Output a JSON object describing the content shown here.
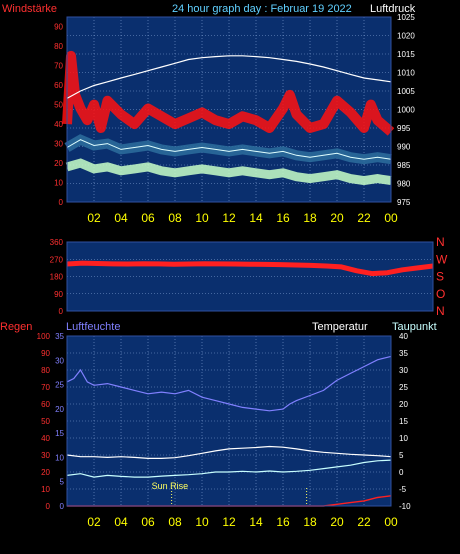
{
  "header": {
    "left_label": "Windstärke",
    "title": "24 hour graph day : Februar 19 2022",
    "right_label": "Luftdruck"
  },
  "colors": {
    "background": "#000000",
    "panel": "#0a2f6e",
    "grid": "#7f9fd2",
    "wind_gust": "#ff1010",
    "wind_dir": "#ff2020",
    "pressure": "#ffffff",
    "wind_speed": "#c8ffc8",
    "wind_avg_band": "#2a6a9a",
    "humidity": "#8080ff",
    "temperature": "#ffffff",
    "dewpoint": "#c8ffff",
    "rain": "#ff2020",
    "x_tick_label": "#ffff00",
    "left_axis_label": "#ff3030",
    "hum_axis_label": "#8080ff",
    "sunrise": "#ffff60"
  },
  "chart_data": [
    {
      "type": "line",
      "name": "wind-pressure",
      "x_ticks": [
        "02",
        "04",
        "06",
        "08",
        "10",
        "12",
        "14",
        "16",
        "18",
        "20",
        "22",
        "00"
      ],
      "xlim": [
        0,
        24
      ],
      "left_axis": {
        "label": "Windstärke",
        "ylim": [
          0,
          95
        ],
        "ticks": [
          0,
          10,
          20,
          30,
          40,
          50,
          60,
          70,
          80,
          90
        ]
      },
      "right_axis": {
        "label": "Luftdruck",
        "ylim": [
          975,
          1025
        ],
        "ticks": [
          975,
          980,
          985,
          990,
          995,
          1000,
          1005,
          1010,
          1015,
          1020,
          1025
        ]
      },
      "series": [
        {
          "x": [
            0,
            1,
            2,
            3,
            4,
            5,
            6,
            7,
            8,
            9,
            10,
            11,
            12,
            13,
            14,
            15,
            16,
            17,
            18,
            19,
            20,
            21,
            22,
            23,
            24
          ],
          "y": [
            1003,
            1005,
            1006.5,
            1007.5,
            1008.5,
            1009.5,
            1010.5,
            1011.5,
            1012.5,
            1013.5,
            1014,
            1014.3,
            1014.5,
            1014.5,
            1014.3,
            1014,
            1013.5,
            1013,
            1012.3,
            1011.5,
            1010.5,
            1009.5,
            1008.5,
            1008,
            1007.5
          ]
        },
        {
          "x": [
            0,
            0.3,
            0.6,
            1,
            1.5,
            2,
            2.5,
            3,
            4,
            5,
            6,
            7,
            8,
            9,
            10,
            11,
            12,
            13,
            14,
            15,
            16,
            16.5,
            17,
            18,
            19,
            20,
            21,
            22,
            22.5,
            23,
            24
          ],
          "y": [
            40,
            75,
            55,
            48,
            42,
            50,
            38,
            52,
            45,
            40,
            48,
            44,
            40,
            43,
            46,
            42,
            40,
            44,
            42,
            38,
            48,
            55,
            45,
            38,
            40,
            52,
            46,
            38,
            50,
            42,
            36
          ]
        },
        {
          "x": [
            0,
            1,
            2,
            3,
            4,
            5,
            6,
            7,
            8,
            9,
            10,
            11,
            12,
            13,
            14,
            15,
            16,
            17,
            18,
            19,
            20,
            21,
            22,
            23,
            24
          ],
          "y": [
            28,
            32,
            29,
            30,
            27,
            28,
            29,
            27,
            26,
            27,
            28,
            27,
            26,
            27,
            26,
            25,
            26,
            24,
            23,
            24,
            25,
            23,
            22,
            23,
            22
          ]
        },
        {
          "x": [
            0,
            1,
            2,
            3,
            4,
            5,
            6,
            7,
            8,
            9,
            10,
            11,
            12,
            13,
            14,
            15,
            16,
            17,
            18,
            19,
            20,
            21,
            22,
            23,
            24
          ],
          "y": [
            18,
            20,
            17,
            18,
            16,
            17,
            18,
            16,
            15,
            16,
            17,
            16,
            15,
            16,
            15,
            14,
            15,
            13,
            12,
            13,
            14,
            12,
            11,
            12,
            11
          ]
        }
      ]
    },
    {
      "type": "line",
      "name": "wind-direction",
      "x_ticks": [],
      "xlim": [
        0,
        24
      ],
      "left_axis": {
        "ylim": [
          0,
          360
        ],
        "ticks": [
          0,
          90,
          180,
          270,
          360
        ]
      },
      "right_labels": [
        "N",
        "W",
        "S",
        "O",
        "N"
      ],
      "series": [
        {
          "x": [
            0,
            1,
            2,
            3,
            4,
            5,
            6,
            7,
            8,
            9,
            10,
            11,
            12,
            13,
            14,
            15,
            16,
            17,
            18,
            19,
            20,
            21,
            22,
            23,
            24
          ],
          "y": [
            245,
            250,
            248,
            246,
            245,
            247,
            246,
            244,
            245,
            247,
            246,
            245,
            244,
            243,
            242,
            240,
            238,
            235,
            230,
            210,
            195,
            200,
            215,
            225,
            235
          ]
        }
      ]
    },
    {
      "type": "line",
      "name": "humidity-temperature",
      "x_ticks": [
        "02",
        "04",
        "06",
        "08",
        "10",
        "12",
        "14",
        "16",
        "18",
        "20",
        "22",
        "00"
      ],
      "xlim": [
        0,
        24
      ],
      "headers": {
        "left1": "Regen",
        "left2": "Luftfeuchte",
        "right1": "Temperatur",
        "right2": "Taupunkt"
      },
      "rain_axis": {
        "ticks": [
          0,
          10,
          20,
          30,
          40,
          50,
          60,
          70,
          80,
          90,
          100
        ]
      },
      "hum_axis": {
        "ticks": [
          0,
          5,
          10,
          15,
          20,
          25,
          30,
          35
        ]
      },
      "temp_axis": {
        "ylim": [
          -10,
          40
        ],
        "ticks": [
          -10,
          -5,
          0,
          5,
          10,
          15,
          20,
          25,
          30,
          35,
          40
        ]
      },
      "annotation": "Sun Rise",
      "series": [
        {
          "x": [
            0,
            0.5,
            1,
            1.5,
            2,
            3,
            4,
            5,
            6,
            7,
            8,
            9,
            10,
            11,
            12,
            13,
            14,
            15,
            16,
            16.5,
            17,
            18,
            19,
            20,
            21,
            22,
            23,
            24
          ],
          "y": [
            73,
            75,
            80,
            73,
            71,
            72,
            70,
            68,
            66,
            67,
            66,
            68,
            64,
            62,
            60,
            58,
            57,
            56,
            57,
            60,
            62,
            65,
            68,
            74,
            78,
            82,
            86,
            88
          ]
        },
        {
          "x": [
            0,
            1,
            2,
            3,
            4,
            5,
            6,
            7,
            8,
            9,
            10,
            11,
            12,
            13,
            14,
            15,
            16,
            17,
            18,
            19,
            20,
            21,
            22,
            23,
            24
          ],
          "y": [
            5,
            4.5,
            4.5,
            4.3,
            4.5,
            4.3,
            4,
            4,
            4.2,
            4.8,
            5.5,
            6.2,
            6.8,
            7,
            7.2,
            7.5,
            7.3,
            6.8,
            6.2,
            5.8,
            5.5,
            5.2,
            5,
            4.8,
            4.5
          ]
        },
        {
          "x": [
            0,
            1,
            2,
            3,
            4,
            5,
            6,
            7,
            8,
            9,
            10,
            11,
            12,
            13,
            14,
            15,
            16,
            17,
            18,
            19,
            20,
            21,
            22,
            23,
            24
          ],
          "y": [
            -1,
            -0.5,
            -1.5,
            -1,
            -1.3,
            -1.5,
            -1.5,
            -1.2,
            -1,
            -0.8,
            -0.5,
            0,
            0,
            0.2,
            0,
            0.3,
            0,
            0.2,
            0.5,
            1,
            1.5,
            2,
            2.8,
            3.3,
            3.5
          ]
        },
        {
          "x": [
            0,
            19,
            20,
            21,
            22,
            22.5,
            23,
            24
          ],
          "y": [
            0,
            0,
            1,
            2,
            3,
            4,
            5,
            6
          ]
        }
      ]
    }
  ]
}
